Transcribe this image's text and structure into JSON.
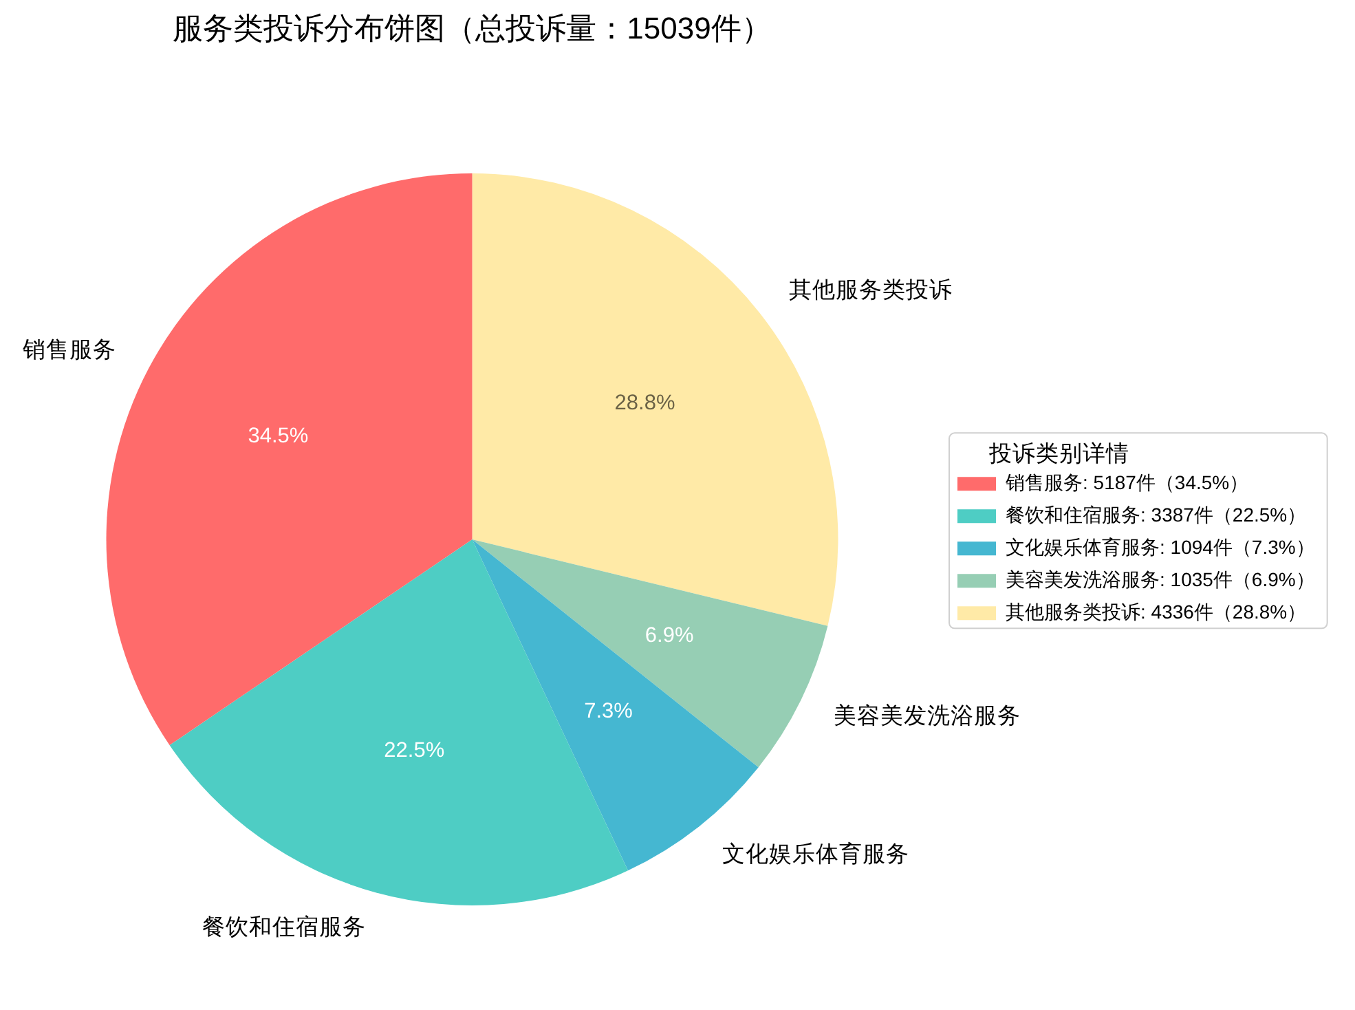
{
  "chart_data": {
    "type": "pie",
    "title": "服务类投诉分布饼图（总投诉量：15039件）",
    "categories": [
      "销售服务",
      "餐饮和住宿服务",
      "文化娱乐体育服务",
      "美容美发洗浴服务",
      "其他服务类投诉"
    ],
    "values": [
      34.5,
      22.5,
      7.3,
      6.9,
      28.8
    ],
    "colors": [
      "#ff6b6b",
      "#4ecdc4",
      "#45b7d1",
      "#96ceb4",
      "#ffeaa7"
    ],
    "value_labels": [
      "34.5%",
      "22.5%",
      "7.3%",
      "6.9%",
      "28.8%"
    ],
    "legend": "right",
    "legend_title": "投诉类别详情",
    "annotations": [
      ": 5187件（34.5%）",
      ": 3387件（22.5%）",
      ": 1094件（7.3%）",
      ": 1035件（6.9%）",
      ": 4336件（28.8%）"
    ]
  }
}
